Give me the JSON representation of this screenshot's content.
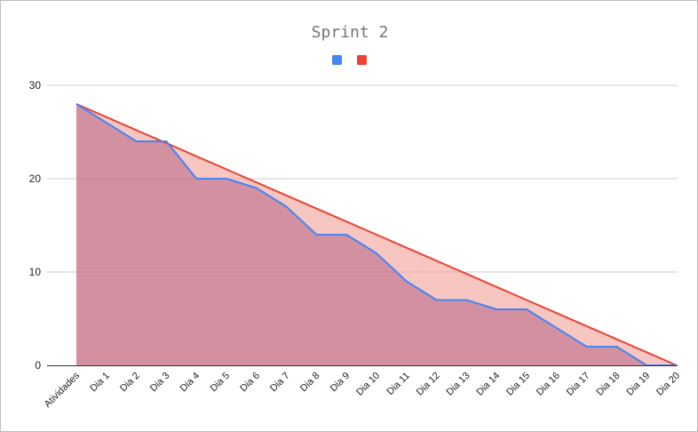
{
  "chart_data": {
    "type": "area",
    "title": "Sprint 2",
    "xlabel": "",
    "ylabel": "",
    "categories": [
      "Atividades",
      "Dia 1",
      "Dia 2",
      "Dia 3",
      "Dia 4",
      "Dia 5",
      "Dia 6",
      "Dia 7",
      "Dia 8",
      "Dia 9",
      "Dia 10",
      "Dia 11",
      "Dia 12",
      "Dia 13",
      "Dia 14",
      "Dia 15",
      "Dia 16",
      "Dia 17",
      "Dia 18",
      "Dia 19",
      "Dia 20"
    ],
    "ylim": [
      0,
      30
    ],
    "yticks": [
      "0",
      "10",
      "20",
      "30"
    ],
    "grid": true,
    "legend": "top-center",
    "series": [
      {
        "name": "",
        "color": "#4285f4",
        "fill": "#a64d79",
        "values": [
          28,
          null,
          24,
          24,
          20,
          20,
          19,
          17,
          14,
          14,
          12,
          9,
          7,
          7,
          6,
          6,
          4,
          2,
          2,
          0,
          0
        ]
      },
      {
        "name": "",
        "color": "#ea4335",
        "fill": "#f4a7a0",
        "values": [
          28,
          26.6,
          25.2,
          23.8,
          22.4,
          21,
          19.6,
          18.2,
          16.8,
          15.4,
          14,
          12.6,
          11.2,
          9.8,
          8.4,
          7,
          5.6,
          4.2,
          2.8,
          1.4,
          0
        ]
      }
    ]
  }
}
